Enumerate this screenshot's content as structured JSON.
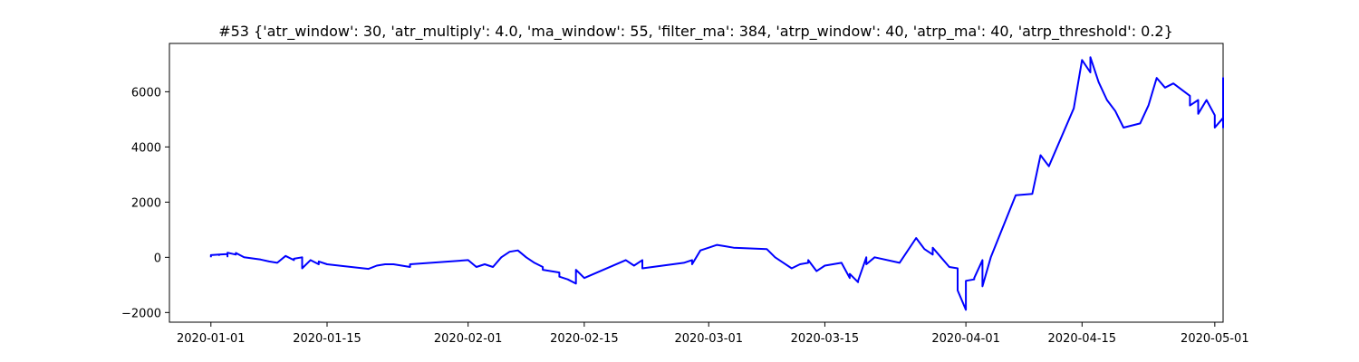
{
  "chart_data": {
    "type": "line",
    "title": "#53 {'atr_window': 30, 'atr_multiply': 4.0, 'ma_window': 55, 'filter_ma': 384, 'atrp_window': 40, 'atrp_ma': 40, 'atrp_threshold': 0.2}",
    "xlabel": "",
    "ylabel": "",
    "x_type": "date",
    "xlim": [
      "2019-12-27",
      "2020-05-02"
    ],
    "ylim": [
      -2350,
      7750
    ],
    "grid": false,
    "legend": null,
    "x_ticks": [
      "2020-01-01",
      "2020-01-15",
      "2020-02-01",
      "2020-02-15",
      "2020-03-01",
      "2020-03-15",
      "2020-04-01",
      "2020-04-15",
      "2020-05-01"
    ],
    "y_ticks": [
      -2000,
      0,
      2000,
      4000,
      6000
    ],
    "y_tick_labels": [
      "−2000",
      "0",
      "2000",
      "4000",
      "6000"
    ],
    "series": [
      {
        "color": "#0000ff",
        "points": [
          [
            "2020-01-01",
            0
          ],
          [
            "2020-01-01",
            80
          ],
          [
            "2020-01-02",
            100
          ],
          [
            "2020-01-02",
            80
          ],
          [
            "2020-01-02",
            100
          ],
          [
            "2020-01-03",
            120
          ],
          [
            "2020-01-03",
            30
          ],
          [
            "2020-01-03",
            170
          ],
          [
            "2020-01-04",
            100
          ],
          [
            "2020-01-04",
            160
          ],
          [
            "2020-01-05",
            0
          ],
          [
            "2020-01-07",
            -80
          ],
          [
            "2020-01-08",
            -150
          ],
          [
            "2020-01-09",
            -200
          ],
          [
            "2020-01-10",
            50
          ],
          [
            "2020-01-11",
            -100
          ],
          [
            "2020-01-11",
            -50
          ],
          [
            "2020-01-12",
            0
          ],
          [
            "2020-01-12",
            -400
          ],
          [
            "2020-01-13",
            -100
          ],
          [
            "2020-01-14",
            -250
          ],
          [
            "2020-01-14",
            -150
          ],
          [
            "2020-01-15",
            -250
          ],
          [
            "2020-01-20",
            -420
          ],
          [
            "2020-01-21",
            -300
          ],
          [
            "2020-01-22",
            -250
          ],
          [
            "2020-01-23",
            -250
          ],
          [
            "2020-01-25",
            -350
          ],
          [
            "2020-01-25",
            -250
          ],
          [
            "2020-02-01",
            -100
          ],
          [
            "2020-02-02",
            -350
          ],
          [
            "2020-02-03",
            -250
          ],
          [
            "2020-02-03",
            -250
          ],
          [
            "2020-02-04",
            -350
          ],
          [
            "2020-02-05",
            0
          ],
          [
            "2020-02-06",
            200
          ],
          [
            "2020-02-07",
            250
          ],
          [
            "2020-02-08",
            0
          ],
          [
            "2020-02-09",
            -200
          ],
          [
            "2020-02-10",
            -350
          ],
          [
            "2020-02-10",
            -450
          ],
          [
            "2020-02-11",
            -500
          ],
          [
            "2020-02-12",
            -550
          ],
          [
            "2020-02-12",
            -700
          ],
          [
            "2020-02-13",
            -800
          ],
          [
            "2020-02-14",
            -950
          ],
          [
            "2020-02-14",
            -450
          ],
          [
            "2020-02-15",
            -750
          ],
          [
            "2020-02-20",
            -100
          ],
          [
            "2020-02-21",
            -300
          ],
          [
            "2020-02-22",
            -100
          ],
          [
            "2020-02-22",
            -400
          ],
          [
            "2020-02-27",
            -200
          ],
          [
            "2020-02-28",
            -100
          ],
          [
            "2020-02-28",
            -250
          ],
          [
            "2020-02-29",
            250
          ],
          [
            "2020-03-01",
            350
          ],
          [
            "2020-03-02",
            450
          ],
          [
            "2020-03-03",
            400
          ],
          [
            "2020-03-04",
            350
          ],
          [
            "2020-03-08",
            300
          ],
          [
            "2020-03-09",
            0
          ],
          [
            "2020-03-10",
            -200
          ],
          [
            "2020-03-11",
            -400
          ],
          [
            "2020-03-12",
            -250
          ],
          [
            "2020-03-13",
            -200
          ],
          [
            "2020-03-13",
            -100
          ],
          [
            "2020-03-14",
            -500
          ],
          [
            "2020-03-15",
            -300
          ],
          [
            "2020-03-17",
            -200
          ],
          [
            "2020-03-18",
            -750
          ],
          [
            "2020-03-18",
            -600
          ],
          [
            "2020-03-19",
            -900
          ],
          [
            "2020-03-19",
            -850
          ],
          [
            "2020-03-20",
            0
          ],
          [
            "2020-03-20",
            -250
          ],
          [
            "2020-03-21",
            0
          ],
          [
            "2020-03-24",
            -200
          ],
          [
            "2020-03-26",
            700
          ],
          [
            "2020-03-27",
            300
          ],
          [
            "2020-03-28",
            100
          ],
          [
            "2020-03-28",
            350
          ],
          [
            "2020-03-30",
            -350
          ],
          [
            "2020-03-31",
            -400
          ],
          [
            "2020-03-31",
            -1200
          ],
          [
            "2020-04-01",
            -1900
          ],
          [
            "2020-04-01",
            -850
          ],
          [
            "2020-04-02",
            -800
          ],
          [
            "2020-04-02",
            -750
          ],
          [
            "2020-04-03",
            -100
          ],
          [
            "2020-04-03",
            -1050
          ],
          [
            "2020-04-04",
            0
          ],
          [
            "2020-04-07",
            2250
          ],
          [
            "2020-04-09",
            2300
          ],
          [
            "2020-04-10",
            3700
          ],
          [
            "2020-04-11",
            3300
          ],
          [
            "2020-04-14",
            5400
          ],
          [
            "2020-04-15",
            7150
          ],
          [
            "2020-04-16",
            6700
          ],
          [
            "2020-04-16",
            7250
          ],
          [
            "2020-04-17",
            6350
          ],
          [
            "2020-04-18",
            5700
          ],
          [
            "2020-04-19",
            5300
          ],
          [
            "2020-04-20",
            4700
          ],
          [
            "2020-04-22",
            4850
          ],
          [
            "2020-04-23",
            5500
          ],
          [
            "2020-04-24",
            6500
          ],
          [
            "2020-04-25",
            6150
          ],
          [
            "2020-04-26",
            6300
          ],
          [
            "2020-04-28",
            5850
          ],
          [
            "2020-04-28",
            5500
          ],
          [
            "2020-04-29",
            5700
          ],
          [
            "2020-04-29",
            5200
          ],
          [
            "2020-04-30",
            5700
          ],
          [
            "2020-04-30",
            5700
          ],
          [
            "2020-05-01",
            5150
          ],
          [
            "2020-05-01",
            4700
          ],
          [
            "2020-05-02",
            5050
          ],
          [
            "2020-05-02",
            4900
          ],
          [
            "2020-05-02",
            4700
          ],
          [
            "2020-05-02",
            4900
          ],
          [
            "2020-05-02",
            4900
          ],
          [
            "2020-05-02",
            5150
          ],
          [
            "2020-05-02",
            5400
          ],
          [
            "2020-05-02",
            5350
          ],
          [
            "2020-05-02",
            5750
          ],
          [
            "2020-05-02",
            6250
          ],
          [
            "2020-05-02",
            6300
          ],
          [
            "2020-05-02",
            6500
          ],
          [
            "2020-05-02",
            6250
          ],
          [
            "2020-05-02",
            6050
          ],
          [
            "2020-05-02",
            5950
          ],
          [
            "2020-05-02",
            5900
          ]
        ]
      }
    ]
  }
}
